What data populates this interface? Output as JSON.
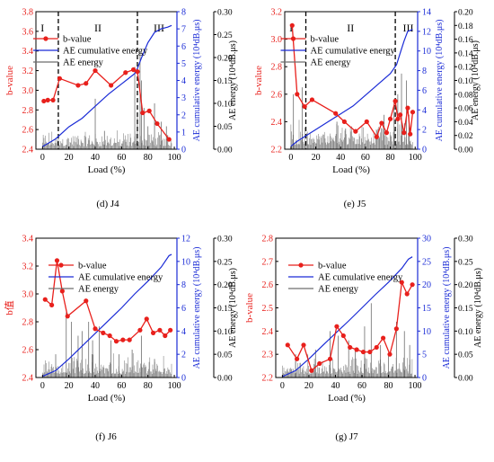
{
  "chart_data": [
    {
      "type": "line",
      "caption": "(d) J4",
      "xlabel": "Load (%)",
      "ylabel": "b-value",
      "y2label": "AE cumulative energy (10⁴dB.μs)",
      "y3label": "AE energy (10⁴dB.μs)",
      "xlim": [
        -5,
        102
      ],
      "xticks": [
        0,
        20,
        40,
        60,
        80,
        100
      ],
      "ylim": [
        2.4,
        3.8
      ],
      "yticks": [
        "2.4",
        "2.6",
        "2.8",
        "3.0",
        "3.2",
        "3.4",
        "3.6",
        "3.8"
      ],
      "y2lim": [
        0,
        8
      ],
      "y2ticks": [
        "0",
        "1",
        "2",
        "3",
        "4",
        "5",
        "6",
        "7",
        "8"
      ],
      "y3lim": [
        0,
        0.3
      ],
      "y3ticks": [
        "0.00",
        "0.05",
        "0.10",
        "0.15",
        "0.20",
        "0.25",
        "0.30"
      ],
      "legend": {
        "position": "top-left",
        "entries": [
          "b-value",
          "AE cumulative energy",
          "AE energy"
        ]
      },
      "stage_labels": [
        "I",
        "II",
        "III"
      ],
      "stage_boundaries": [
        12,
        72
      ],
      "bvalue": {
        "x": [
          1,
          4,
          8,
          13,
          27,
          33,
          40,
          52,
          63,
          69,
          72,
          76,
          81,
          87,
          96
        ],
        "y": [
          2.89,
          2.9,
          2.9,
          3.12,
          3.05,
          3.07,
          3.2,
          3.05,
          3.18,
          3.21,
          3.19,
          2.77,
          2.79,
          2.66,
          2.5
        ]
      },
      "cumulative": {
        "x": [
          0,
          10,
          20,
          30,
          40,
          50,
          60,
          65,
          70,
          72,
          75,
          80,
          85,
          90,
          95,
          98
        ],
        "y": [
          0.15,
          0.6,
          1.3,
          1.8,
          2.5,
          3.2,
          3.8,
          4.1,
          4.4,
          4.7,
          5.3,
          6.2,
          6.8,
          7.0,
          7.1,
          7.2
        ]
      },
      "energy_spikes": [
        [
          40,
          0.11
        ],
        [
          47,
          0.04
        ],
        [
          70,
          0.18
        ],
        [
          72,
          0.07
        ],
        [
          74,
          0.21
        ],
        [
          75,
          0.15
        ],
        [
          77,
          0.09
        ],
        [
          80,
          0.05
        ],
        [
          85,
          0.1
        ],
        [
          90,
          0.06
        ],
        [
          94,
          0.05
        ]
      ],
      "noise_level": 0.025
    },
    {
      "type": "line",
      "caption": "(e) J5",
      "xlabel": "Load (%)",
      "ylabel": "b-value",
      "y2label": "AE cumulative energy (10⁴dB.μs)",
      "y3label": "AE energy (10⁴dB.μs)",
      "xlim": [
        -5,
        102
      ],
      "xticks": [
        0,
        20,
        40,
        60,
        80,
        100
      ],
      "ylim": [
        2.2,
        3.2
      ],
      "yticks": [
        "2.2",
        "2.4",
        "2.6",
        "2.8",
        "3.0",
        "3.2"
      ],
      "y2lim": [
        0,
        14
      ],
      "y2ticks": [
        "0",
        "2",
        "4",
        "6",
        "8",
        "10",
        "12",
        "14"
      ],
      "y3lim": [
        0,
        0.2
      ],
      "y3ticks": [
        "0.00",
        "0.02",
        "0.04",
        "0.06",
        "0.08",
        "0.10",
        "0.12",
        "0.14",
        "0.16",
        "0.18",
        "0.20"
      ],
      "legend": {
        "position": "top-left",
        "entries": [
          "b-value",
          "AE cumulative energy",
          "AE energy"
        ]
      },
      "stage_labels": [
        "I",
        "II",
        "III"
      ],
      "stage_boundaries": [
        12,
        84
      ],
      "bvalue": {
        "x": [
          1,
          5,
          11,
          17,
          36,
          43,
          52,
          61,
          69,
          73,
          77,
          80,
          84,
          86,
          88,
          91,
          94,
          96,
          98
        ],
        "y": [
          3.1,
          2.6,
          2.51,
          2.56,
          2.46,
          2.4,
          2.33,
          2.4,
          2.29,
          2.39,
          2.32,
          2.42,
          2.55,
          2.42,
          2.45,
          2.32,
          2.5,
          2.31,
          2.47
        ]
      },
      "cumulative": {
        "x": [
          0,
          5,
          10,
          20,
          30,
          40,
          50,
          60,
          70,
          80,
          85,
          88,
          91,
          94,
          98
        ],
        "y": [
          0.3,
          0.8,
          1.2,
          2.0,
          2.8,
          3.6,
          4.4,
          5.5,
          6.6,
          7.7,
          8.6,
          9.8,
          11.0,
          12.0,
          12.2
        ]
      },
      "energy_spikes": [
        [
          2,
          0.08
        ],
        [
          9,
          0.09
        ],
        [
          37,
          0.04
        ],
        [
          44,
          0.03
        ],
        [
          75,
          0.05
        ],
        [
          83,
          0.07
        ],
        [
          86,
          0.08
        ],
        [
          89,
          0.11
        ],
        [
          93,
          0.1
        ],
        [
          95,
          0.05
        ]
      ],
      "noise_level": 0.025
    },
    {
      "type": "line",
      "caption": "(f) J6",
      "xlabel": "Load (%)",
      "ylabel": "b值",
      "y2label": "AE cumulative energy (10⁴dB.μs)",
      "y3label": "AE energy (10⁴dB.μs)",
      "xlim": [
        -5,
        102
      ],
      "xticks": [
        0,
        20,
        40,
        60,
        80,
        100
      ],
      "ylim": [
        2.4,
        3.4
      ],
      "yticks": [
        "2.4",
        "2.6",
        "2.8",
        "3.0",
        "3.2",
        "3.4"
      ],
      "y2lim": [
        0,
        12
      ],
      "y2ticks": [
        "0",
        "2",
        "4",
        "6",
        "8",
        "10",
        "12"
      ],
      "y3lim": [
        0,
        0.3
      ],
      "y3ticks": [
        "0.00",
        "0.05",
        "0.10",
        "0.15",
        "0.20",
        "0.25",
        "0.30"
      ],
      "legend": {
        "position": "top-left",
        "entries": [
          "b-value",
          "AE cumulative energy",
          "AE energy"
        ]
      },
      "bvalue": {
        "x": [
          2,
          7,
          11,
          15,
          19,
          33,
          40,
          46,
          51,
          56,
          61,
          66,
          74,
          79,
          84,
          89,
          93,
          97
        ],
        "y": [
          2.96,
          2.92,
          3.24,
          3.02,
          2.84,
          2.95,
          2.75,
          2.72,
          2.7,
          2.66,
          2.67,
          2.67,
          2.74,
          2.82,
          2.72,
          2.74,
          2.7,
          2.74
        ]
      },
      "cumulative": {
        "x": [
          0,
          10,
          20,
          30,
          40,
          50,
          60,
          70,
          80,
          90,
          96,
          98
        ],
        "y": [
          0.1,
          0.6,
          1.6,
          2.7,
          3.8,
          4.9,
          6.0,
          7.2,
          8.3,
          9.5,
          10.5,
          10.6
        ]
      },
      "energy_spikes": [
        [
          10,
          0.05
        ],
        [
          18,
          0.14
        ],
        [
          22,
          0.12
        ],
        [
          27,
          0.09
        ],
        [
          30,
          0.1
        ],
        [
          35,
          0.12
        ],
        [
          38,
          0.08
        ],
        [
          43,
          0.11
        ],
        [
          52,
          0.08
        ],
        [
          58,
          0.05
        ],
        [
          68,
          0.06
        ],
        [
          75,
          0.09
        ],
        [
          85,
          0.04
        ]
      ],
      "noise_level": 0.03
    },
    {
      "type": "line",
      "caption": "(g) J7",
      "xlabel": "Load (%)",
      "ylabel": "b-value",
      "y2label": "AE cumulative energy (10⁴dB.μs)",
      "y3label": "AE energy (10⁴dB.μs)",
      "xlim": [
        -5,
        102
      ],
      "xticks": [
        0,
        20,
        40,
        60,
        80,
        100
      ],
      "ylim": [
        2.2,
        2.8
      ],
      "yticks": [
        "2.2",
        "2.3",
        "2.4",
        "2.5",
        "2.6",
        "2.7",
        "2.8"
      ],
      "y2lim": [
        0,
        30
      ],
      "y2ticks": [
        "0",
        "5",
        "10",
        "15",
        "20",
        "25",
        "30"
      ],
      "y3lim": [
        0,
        0.3
      ],
      "y3ticks": [
        "0.00",
        "0.05",
        "0.10",
        "0.15",
        "0.20",
        "0.25",
        "0.30"
      ],
      "legend": {
        "position": "top-left",
        "entries": [
          "b-value",
          "AE cumulative energy",
          "AE  energy"
        ]
      },
      "bvalue": {
        "x": [
          4,
          11,
          16,
          22,
          28,
          36,
          41,
          46,
          51,
          56,
          61,
          66,
          71,
          76,
          81,
          86,
          90,
          94,
          98
        ],
        "y": [
          2.34,
          2.28,
          2.34,
          2.23,
          2.26,
          2.28,
          2.42,
          2.38,
          2.33,
          2.32,
          2.31,
          2.31,
          2.33,
          2.37,
          2.3,
          2.41,
          2.61,
          2.56,
          2.6
        ]
      },
      "cumulative": {
        "x": [
          0,
          10,
          20,
          30,
          40,
          50,
          60,
          70,
          80,
          90,
          95,
          98
        ],
        "y": [
          0.2,
          1.5,
          4.0,
          6.8,
          9.5,
          12.2,
          15.0,
          17.8,
          20.5,
          23.5,
          25.5,
          26.0
        ]
      },
      "energy_spikes": [
        [
          10,
          0.05
        ],
        [
          25,
          0.06
        ],
        [
          36,
          0.1
        ],
        [
          42,
          0.09
        ],
        [
          50,
          0.08
        ],
        [
          55,
          0.06
        ],
        [
          62,
          0.11
        ],
        [
          67,
          0.16
        ],
        [
          74,
          0.07
        ],
        [
          80,
          0.05
        ],
        [
          86,
          0.12
        ],
        [
          92,
          0.1
        ],
        [
          96,
          0.07
        ]
      ],
      "noise_level": 0.03
    }
  ]
}
